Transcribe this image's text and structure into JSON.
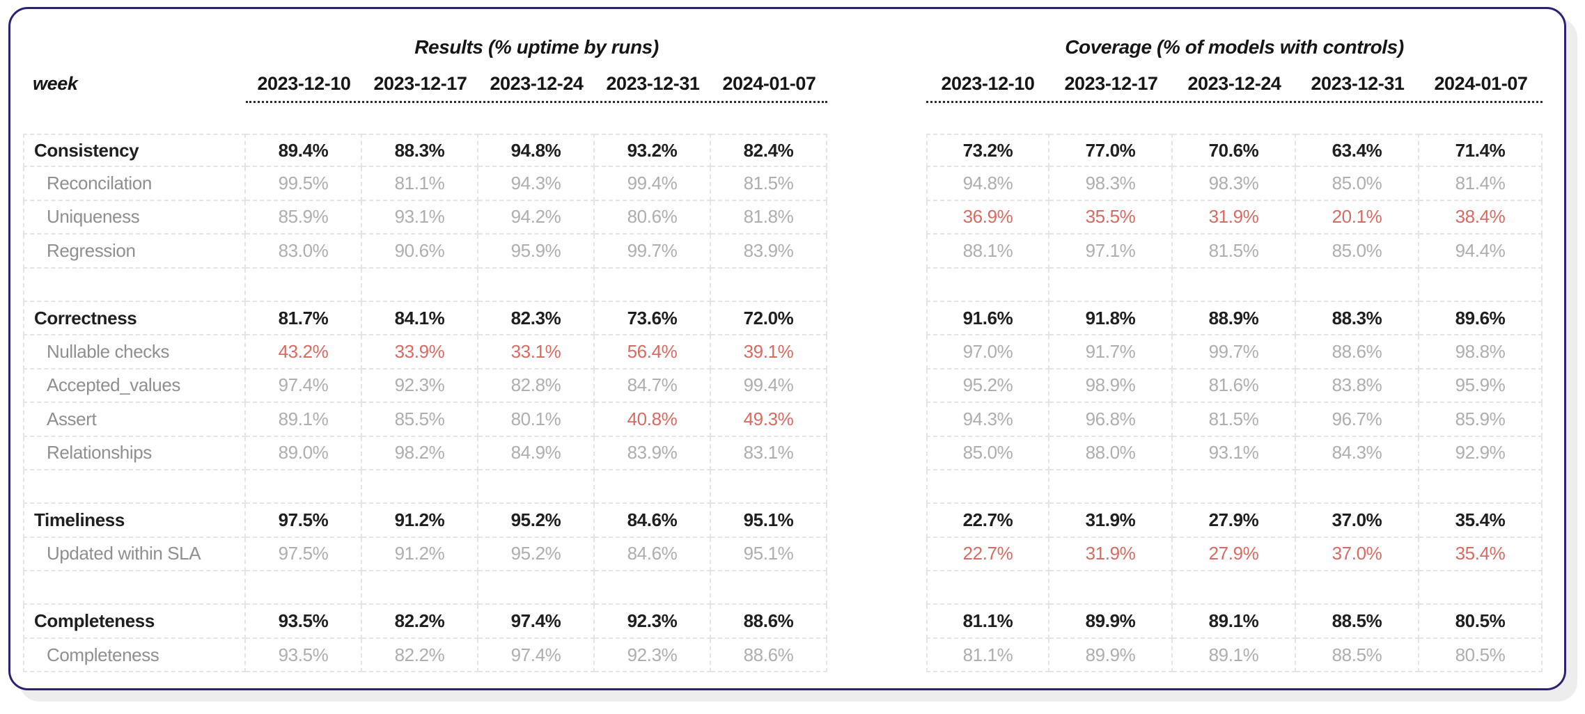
{
  "chart_data": {
    "type": "table",
    "row_header": "week",
    "results_title": "Results (% uptime by runs)",
    "coverage_title": "Coverage (% of models with controls)",
    "weeks": [
      "2023-12-10",
      "2023-12-17",
      "2023-12-24",
      "2023-12-31",
      "2024-01-07"
    ],
    "rows": [
      {
        "kind": "section",
        "label": "Consistency",
        "results": [
          "89.4%",
          "88.3%",
          "94.8%",
          "93.2%",
          "82.4%"
        ],
        "coverage": [
          "73.2%",
          "77.0%",
          "70.6%",
          "63.4%",
          "71.4%"
        ],
        "results_alerts": [],
        "coverage_alerts": []
      },
      {
        "kind": "detail",
        "label": "Reconcilation",
        "results": [
          "99.5%",
          "81.1%",
          "94.3%",
          "99.4%",
          "81.5%"
        ],
        "coverage": [
          "94.8%",
          "98.3%",
          "98.3%",
          "85.0%",
          "81.4%"
        ],
        "results_alerts": [],
        "coverage_alerts": []
      },
      {
        "kind": "detail",
        "label": "Uniqueness",
        "results": [
          "85.9%",
          "93.1%",
          "94.2%",
          "80.6%",
          "81.8%"
        ],
        "coverage": [
          "36.9%",
          "35.5%",
          "31.9%",
          "20.1%",
          "38.4%"
        ],
        "results_alerts": [],
        "coverage_alerts": [
          0,
          1,
          2,
          3,
          4
        ]
      },
      {
        "kind": "detail",
        "label": "Regression",
        "results": [
          "83.0%",
          "90.6%",
          "95.9%",
          "99.7%",
          "83.9%"
        ],
        "coverage": [
          "88.1%",
          "97.1%",
          "81.5%",
          "85.0%",
          "94.4%"
        ],
        "results_alerts": [],
        "coverage_alerts": []
      },
      {
        "kind": "spacer"
      },
      {
        "kind": "section",
        "label": "Correctness",
        "results": [
          "81.7%",
          "84.1%",
          "82.3%",
          "73.6%",
          "72.0%"
        ],
        "coverage": [
          "91.6%",
          "91.8%",
          "88.9%",
          "88.3%",
          "89.6%"
        ],
        "results_alerts": [],
        "coverage_alerts": []
      },
      {
        "kind": "detail",
        "label": "Nullable checks",
        "results": [
          "43.2%",
          "33.9%",
          "33.1%",
          "56.4%",
          "39.1%"
        ],
        "coverage": [
          "97.0%",
          "91.7%",
          "99.7%",
          "88.6%",
          "98.8%"
        ],
        "results_alerts": [
          0,
          1,
          2,
          3,
          4
        ],
        "coverage_alerts": []
      },
      {
        "kind": "detail",
        "label": "Accepted_values",
        "results": [
          "97.4%",
          "92.3%",
          "82.8%",
          "84.7%",
          "99.4%"
        ],
        "coverage": [
          "95.2%",
          "98.9%",
          "81.6%",
          "83.8%",
          "95.9%"
        ],
        "results_alerts": [],
        "coverage_alerts": []
      },
      {
        "kind": "detail",
        "label": "Assert",
        "results": [
          "89.1%",
          "85.5%",
          "80.1%",
          "40.8%",
          "49.3%"
        ],
        "coverage": [
          "94.3%",
          "96.8%",
          "81.5%",
          "96.7%",
          "85.9%"
        ],
        "results_alerts": [
          3,
          4
        ],
        "coverage_alerts": []
      },
      {
        "kind": "detail",
        "label": "Relationships",
        "results": [
          "89.0%",
          "98.2%",
          "84.9%",
          "83.9%",
          "83.1%"
        ],
        "coverage": [
          "85.0%",
          "88.0%",
          "93.1%",
          "84.3%",
          "92.9%"
        ],
        "results_alerts": [],
        "coverage_alerts": []
      },
      {
        "kind": "spacer"
      },
      {
        "kind": "section",
        "label": "Timeliness",
        "results": [
          "97.5%",
          "91.2%",
          "95.2%",
          "84.6%",
          "95.1%"
        ],
        "coverage": [
          "22.7%",
          "31.9%",
          "27.9%",
          "37.0%",
          "35.4%"
        ],
        "results_alerts": [],
        "coverage_alerts": []
      },
      {
        "kind": "detail",
        "label": "Updated within SLA",
        "results": [
          "97.5%",
          "91.2%",
          "95.2%",
          "84.6%",
          "95.1%"
        ],
        "coverage": [
          "22.7%",
          "31.9%",
          "27.9%",
          "37.0%",
          "35.4%"
        ],
        "results_alerts": [],
        "coverage_alerts": [
          0,
          1,
          2,
          3,
          4
        ]
      },
      {
        "kind": "spacer"
      },
      {
        "kind": "section",
        "label": "Completeness",
        "results": [
          "93.5%",
          "82.2%",
          "97.4%",
          "92.3%",
          "88.6%"
        ],
        "coverage": [
          "81.1%",
          "89.9%",
          "89.1%",
          "88.5%",
          "80.5%"
        ],
        "results_alerts": [],
        "coverage_alerts": []
      },
      {
        "kind": "detail",
        "label": "Completeness",
        "results": [
          "93.5%",
          "82.2%",
          "97.4%",
          "92.3%",
          "88.6%"
        ],
        "coverage": [
          "81.1%",
          "89.9%",
          "89.1%",
          "88.5%",
          "80.5%"
        ],
        "results_alerts": [],
        "coverage_alerts": []
      }
    ],
    "colors": {
      "border": "#2b2171",
      "text": "#1f1f1f",
      "muted_label": "#8f8f8f",
      "muted_value": "#aeaeae",
      "alert": "#d76b61",
      "grid_line": "#e4e4e4"
    }
  }
}
